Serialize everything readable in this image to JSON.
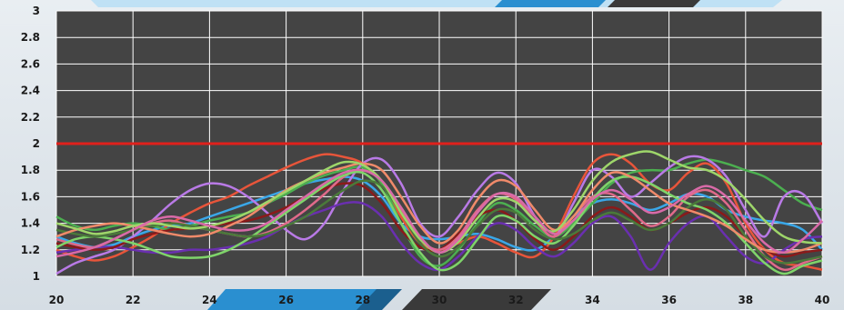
{
  "chart_data": {
    "type": "line",
    "xlim": [
      20,
      40
    ],
    "ylim": [
      1,
      3
    ],
    "x_ticks": [
      "20",
      "22",
      "24",
      "26",
      "28",
      "30",
      "32",
      "34",
      "36",
      "38",
      "40"
    ],
    "y_ticks": [
      "1",
      "1.2",
      "1.4",
      "1.6",
      "1.8",
      "2",
      "2.2",
      "2.4",
      "2.6",
      "2.8",
      "3"
    ],
    "grid": true,
    "reference_line": {
      "y": 2,
      "color": "#e0201b"
    },
    "x": [
      20,
      20.5,
      21,
      21.5,
      22,
      22.5,
      23,
      23.5,
      24,
      24.5,
      25,
      25.5,
      26,
      26.5,
      27,
      27.5,
      28,
      28.5,
      29,
      29.5,
      30,
      30.5,
      31,
      31.5,
      32,
      32.5,
      33,
      33.5,
      34,
      34.5,
      35,
      35.5,
      36,
      36.5,
      37,
      37.5,
      38,
      38.5,
      39,
      39.5,
      40
    ],
    "series": [
      {
        "color": "#3aa7e8",
        "values": [
          1.3,
          1.25,
          1.22,
          1.24,
          1.3,
          1.35,
          1.38,
          1.4,
          1.45,
          1.5,
          1.55,
          1.6,
          1.65,
          1.7,
          1.73,
          1.75,
          1.72,
          1.6,
          1.4,
          1.3,
          1.28,
          1.3,
          1.32,
          1.28,
          1.22,
          1.2,
          1.3,
          1.45,
          1.55,
          1.58,
          1.55,
          1.5,
          1.55,
          1.62,
          1.6,
          1.5,
          1.45,
          1.42,
          1.4,
          1.35,
          1.2
        ]
      },
      {
        "color": "#e8553a",
        "values": [
          1.2,
          1.15,
          1.12,
          1.15,
          1.22,
          1.3,
          1.4,
          1.48,
          1.55,
          1.6,
          1.68,
          1.75,
          1.82,
          1.88,
          1.92,
          1.9,
          1.85,
          1.7,
          1.45,
          1.25,
          1.2,
          1.25,
          1.3,
          1.25,
          1.18,
          1.15,
          1.3,
          1.6,
          1.85,
          1.92,
          1.85,
          1.7,
          1.65,
          1.78,
          1.85,
          1.7,
          1.4,
          1.2,
          1.1,
          1.08,
          1.05
        ]
      },
      {
        "color": "#4caf50",
        "values": [
          1.45,
          1.38,
          1.35,
          1.38,
          1.4,
          1.38,
          1.35,
          1.38,
          1.42,
          1.45,
          1.48,
          1.55,
          1.62,
          1.7,
          1.76,
          1.8,
          1.82,
          1.7,
          1.4,
          1.15,
          1.08,
          1.2,
          1.4,
          1.55,
          1.5,
          1.38,
          1.3,
          1.4,
          1.55,
          1.7,
          1.78,
          1.8,
          1.8,
          1.85,
          1.88,
          1.85,
          1.8,
          1.75,
          1.65,
          1.55,
          1.5
        ]
      },
      {
        "color": "#b97ae6",
        "values": [
          1.02,
          1.1,
          1.15,
          1.2,
          1.3,
          1.42,
          1.55,
          1.65,
          1.7,
          1.68,
          1.6,
          1.48,
          1.35,
          1.28,
          1.4,
          1.65,
          1.85,
          1.88,
          1.7,
          1.4,
          1.3,
          1.45,
          1.65,
          1.78,
          1.7,
          1.45,
          1.3,
          1.55,
          1.8,
          1.75,
          1.6,
          1.7,
          1.82,
          1.9,
          1.88,
          1.75,
          1.5,
          1.3,
          1.6,
          1.62,
          1.4
        ]
      },
      {
        "color": "#6a2fb0",
        "values": [
          1.18,
          1.2,
          1.22,
          1.22,
          1.2,
          1.18,
          1.18,
          1.2,
          1.2,
          1.22,
          1.25,
          1.3,
          1.38,
          1.45,
          1.5,
          1.55,
          1.55,
          1.45,
          1.25,
          1.1,
          1.05,
          1.15,
          1.3,
          1.4,
          1.35,
          1.22,
          1.15,
          1.25,
          1.4,
          1.45,
          1.3,
          1.05,
          1.25,
          1.4,
          1.45,
          1.3,
          1.15,
          1.1,
          1.2,
          1.28,
          1.3
        ]
      },
      {
        "color": "#8a1a1a",
        "values": [
          1.25,
          1.22,
          1.2,
          1.22,
          1.28,
          1.32,
          1.35,
          1.36,
          1.38,
          1.4,
          1.42,
          1.46,
          1.52,
          1.6,
          1.66,
          1.7,
          1.68,
          1.55,
          1.35,
          1.22,
          1.2,
          1.32,
          1.45,
          1.5,
          1.42,
          1.28,
          1.2,
          1.3,
          1.45,
          1.52,
          1.45,
          1.35,
          1.4,
          1.48,
          1.52,
          1.45,
          1.3,
          1.2,
          1.15,
          1.18,
          1.2
        ]
      },
      {
        "color": "#e06a8a",
        "values": [
          1.28,
          1.24,
          1.22,
          1.28,
          1.35,
          1.4,
          1.42,
          1.38,
          1.35,
          1.32,
          1.3,
          1.33,
          1.4,
          1.5,
          1.62,
          1.75,
          1.8,
          1.72,
          1.5,
          1.28,
          1.2,
          1.3,
          1.5,
          1.62,
          1.58,
          1.42,
          1.3,
          1.45,
          1.6,
          1.62,
          1.5,
          1.38,
          1.45,
          1.6,
          1.65,
          1.55,
          1.35,
          1.15,
          1.05,
          1.1,
          1.15
        ]
      },
      {
        "color": "#7fd46a",
        "values": [
          1.22,
          1.28,
          1.3,
          1.28,
          1.25,
          1.2,
          1.15,
          1.14,
          1.15,
          1.2,
          1.28,
          1.38,
          1.48,
          1.58,
          1.68,
          1.76,
          1.78,
          1.65,
          1.4,
          1.18,
          1.05,
          1.1,
          1.28,
          1.45,
          1.42,
          1.3,
          1.25,
          1.38,
          1.58,
          1.72,
          1.75,
          1.7,
          1.62,
          1.55,
          1.5,
          1.4,
          1.25,
          1.1,
          1.02,
          1.08,
          1.12
        ]
      },
      {
        "color": "#4a7a3a",
        "values": [
          1.35,
          1.32,
          1.3,
          1.32,
          1.35,
          1.38,
          1.4,
          1.38,
          1.35,
          1.32,
          1.3,
          1.32,
          1.38,
          1.45,
          1.55,
          1.65,
          1.72,
          1.68,
          1.48,
          1.25,
          1.15,
          1.22,
          1.38,
          1.5,
          1.48,
          1.35,
          1.28,
          1.32,
          1.42,
          1.48,
          1.42,
          1.35,
          1.4,
          1.52,
          1.58,
          1.5,
          1.3,
          1.15,
          1.1,
          1.12,
          1.15
        ]
      },
      {
        "color": "#f08a6a",
        "values": [
          1.3,
          1.35,
          1.38,
          1.4,
          1.38,
          1.35,
          1.32,
          1.3,
          1.32,
          1.38,
          1.45,
          1.55,
          1.65,
          1.72,
          1.78,
          1.82,
          1.85,
          1.8,
          1.6,
          1.38,
          1.25,
          1.35,
          1.58,
          1.72,
          1.68,
          1.5,
          1.35,
          1.45,
          1.65,
          1.78,
          1.75,
          1.65,
          1.55,
          1.5,
          1.45,
          1.38,
          1.28,
          1.2,
          1.18,
          1.2,
          1.25
        ]
      },
      {
        "color": "#9ed66a",
        "values": [
          1.4,
          1.36,
          1.32,
          1.34,
          1.38,
          1.4,
          1.38,
          1.36,
          1.38,
          1.42,
          1.48,
          1.56,
          1.64,
          1.72,
          1.8,
          1.86,
          1.84,
          1.72,
          1.48,
          1.28,
          1.18,
          1.26,
          1.44,
          1.58,
          1.56,
          1.42,
          1.34,
          1.5,
          1.72,
          1.86,
          1.92,
          1.94,
          1.88,
          1.82,
          1.8,
          1.72,
          1.58,
          1.42,
          1.3,
          1.26,
          1.25
        ]
      },
      {
        "color": "#d96aa8",
        "values": [
          1.15,
          1.18,
          1.22,
          1.28,
          1.35,
          1.42,
          1.45,
          1.42,
          1.38,
          1.35,
          1.35,
          1.4,
          1.5,
          1.6,
          1.7,
          1.78,
          1.8,
          1.72,
          1.52,
          1.3,
          1.18,
          1.28,
          1.48,
          1.62,
          1.6,
          1.45,
          1.32,
          1.42,
          1.58,
          1.65,
          1.58,
          1.48,
          1.52,
          1.62,
          1.68,
          1.6,
          1.42,
          1.25,
          1.18,
          1.28,
          1.42
        ]
      }
    ]
  }
}
